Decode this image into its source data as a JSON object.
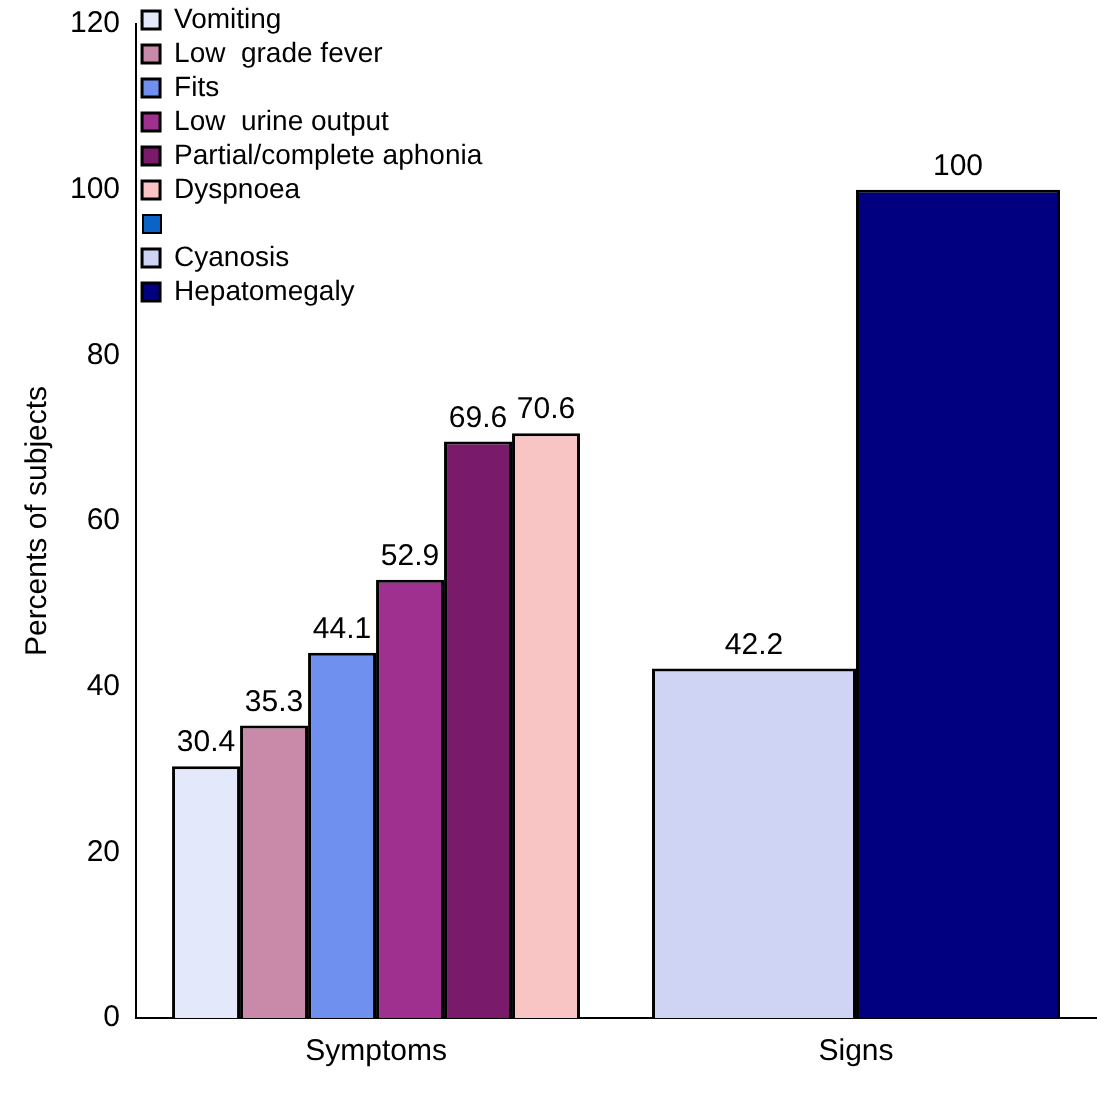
{
  "chart_data": {
    "type": "bar",
    "ylabel": "Percents of subjects",
    "categories": [
      "Symptoms",
      "Signs"
    ],
    "series": [
      {
        "name": "Vomiting",
        "color": "#e4e8fb",
        "values": [
          30.4,
          null
        ]
      },
      {
        "name": "Low  grade fever",
        "color": "#c88aa8",
        "values": [
          35.3,
          null
        ]
      },
      {
        "name": "Fits",
        "color": "#7090f0",
        "values": [
          44.1,
          null
        ]
      },
      {
        "name": "Low  urine output",
        "color": "#a03090",
        "values": [
          52.9,
          null
        ]
      },
      {
        "name": "Partial/complete aphonia",
        "color": "#7a1a6a",
        "values": [
          69.6,
          null
        ]
      },
      {
        "name": "Dyspnoea",
        "color": "#f8c4c4",
        "values": [
          70.6,
          null
        ]
      },
      {
        "color": "#0a64c8",
        "values": [
          null,
          null
        ]
      },
      {
        "name": "Cyanosis",
        "color": "#d0d4f4",
        "values": [
          null,
          42.2
        ]
      },
      {
        "name": "Hepatomegaly",
        "color": "#000080",
        "values": [
          null,
          100
        ]
      }
    ],
    "ylim": [
      0,
      120
    ],
    "yticks": [
      0,
      20,
      40,
      60,
      80,
      100,
      120
    ],
    "grid": false,
    "legend": "top left",
    "data_labels": true
  }
}
